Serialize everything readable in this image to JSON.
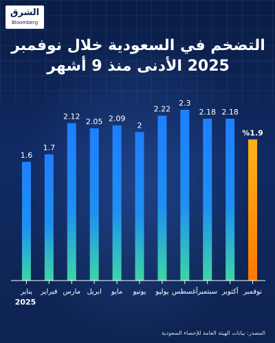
{
  "brand": {
    "logo_arabic": "الشرق",
    "logo_english": "Bloomberg"
  },
  "title": "التضخم في السعودية خلال نوفمبر 2025 الأدنى منذ 9 أشهر",
  "source": "المصدر: بيانات الهيئة العامة للإحصاء السعودية",
  "colors": {
    "background": "#0b1f4a",
    "bar_top": "#1f7fff",
    "bar_bottom": "#3ed6a6",
    "highlight_top": "#ffb21a",
    "highlight_bottom": "#ff7a00"
  },
  "chart_data": {
    "type": "bar",
    "title": "التضخم في السعودية خلال نوفمبر 2025 الأدنى منذ 9 أشهر",
    "categories": [
      "يناير",
      "فبراير",
      "مارس",
      "ابريل",
      "مايو",
      "يونيو",
      "يوليو",
      "أغسطس",
      "سبتمبر",
      "أكتوبر",
      "نوفمبر"
    ],
    "values": [
      1.6,
      1.7,
      2.12,
      2.05,
      2.09,
      2,
      2.22,
      2.3,
      2.18,
      2.18,
      1.9
    ],
    "value_labels": [
      "1.6",
      "1.7",
      "2.12",
      "2.05",
      "2.09",
      "2",
      "2.22",
      "2.3",
      "2.18",
      "2.18",
      "%1.9"
    ],
    "year_label": "2025",
    "highlight_index": 10,
    "ylim": [
      0,
      2.3
    ],
    "grid": false,
    "legend": false
  }
}
